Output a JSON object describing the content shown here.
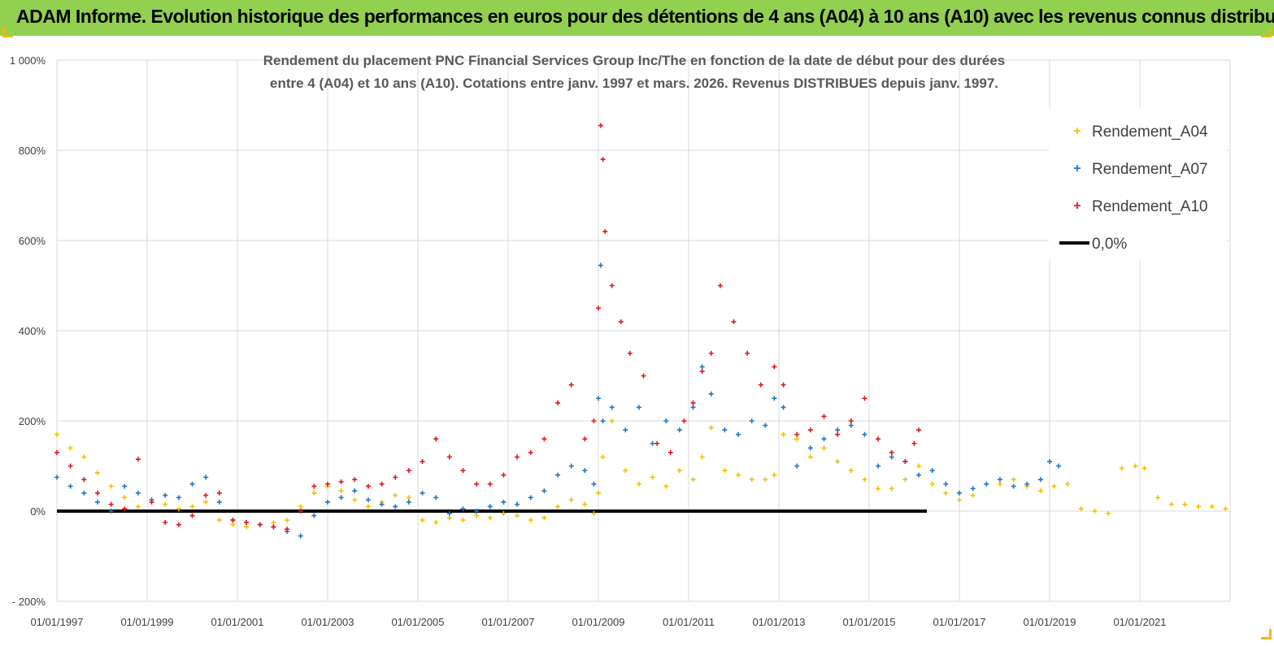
{
  "banner": {
    "title": "ADAM Informe. Evolution historique des performances en euros pour des détentions de 4 ans (A04) à 10 ans (A10) avec les revenus connus distribués",
    "background": "#92d050"
  },
  "chart_data": {
    "type": "scatter",
    "title_lines": [
      "Rendement du placement PNC Financial Services Group Inc/The en fonction de la date de début pour des durées",
      "entre 4 (A04) et 10 ans (A10).  Cotations entre janv. 1997 et mars. 2026. Revenus DISTRIBUES depuis janv. 1997."
    ],
    "xlabel": "",
    "ylabel": "",
    "ylim": [
      -200,
      1000
    ],
    "yticks": [
      -200,
      0,
      200,
      400,
      600,
      800,
      1000
    ],
    "ytick_labels": [
      "- 200%",
      "0%",
      "200%",
      "400%",
      "600%",
      "800%",
      "1 000%"
    ],
    "xlim": [
      1997.0,
      2023.0
    ],
    "xticks": [
      1997,
      1999,
      2001,
      2003,
      2005,
      2007,
      2009,
      2011,
      2013,
      2015,
      2017,
      2019,
      2021
    ],
    "xtick_labels": [
      "01/01/1997",
      "01/01/1999",
      "01/01/2001",
      "01/01/2003",
      "01/01/2005",
      "01/01/2007",
      "01/01/2009",
      "01/01/2011",
      "01/01/2013",
      "01/01/2015",
      "01/01/2017",
      "01/01/2019",
      "01/01/2021"
    ],
    "grid": true,
    "legend_position": "top-right",
    "reference_line": {
      "name": "0,0%",
      "y": 0,
      "color": "#000000"
    },
    "series": [
      {
        "name": "Rendement_A04",
        "color": "#f5c000",
        "x": [
          1997.0,
          1997.3,
          1997.6,
          1997.9,
          1998.2,
          1998.5,
          1998.8,
          1999.1,
          1999.4,
          1999.7,
          2000.0,
          2000.3,
          2000.6,
          2000.9,
          2001.2,
          2001.5,
          2001.8,
          2002.1,
          2002.4,
          2002.7,
          2003.0,
          2003.3,
          2003.6,
          2003.9,
          2004.2,
          2004.5,
          2004.8,
          2005.1,
          2005.4,
          2005.7,
          2006.0,
          2006.3,
          2006.6,
          2006.9,
          2007.2,
          2007.5,
          2007.8,
          2008.1,
          2008.4,
          2008.7,
          2008.9,
          2009.0,
          2009.1,
          2009.3,
          2009.6,
          2009.9,
          2010.2,
          2010.5,
          2010.8,
          2011.1,
          2011.3,
          2011.5,
          2011.8,
          2012.1,
          2012.4,
          2012.7,
          2012.9,
          2013.1,
          2013.4,
          2013.7,
          2014.0,
          2014.3,
          2014.6,
          2014.9,
          2015.2,
          2015.5,
          2015.8,
          2016.1,
          2016.4,
          2016.7,
          2017.0,
          2017.3,
          2017.6,
          2017.9,
          2018.2,
          2018.5,
          2018.8,
          2019.1,
          2019.4,
          2019.7,
          2020.0,
          2020.3,
          2020.6,
          2020.9,
          2021.1,
          2021.4,
          2021.7,
          2022.0,
          2022.3,
          2022.6,
          2022.9
        ],
        "y": [
          170,
          140,
          120,
          85,
          55,
          30,
          10,
          25,
          15,
          5,
          10,
          20,
          -20,
          -30,
          -35,
          -30,
          -25,
          -20,
          10,
          40,
          55,
          45,
          25,
          10,
          20,
          35,
          30,
          -20,
          -25,
          -15,
          -20,
          -10,
          -15,
          -5,
          -10,
          -20,
          -15,
          10,
          25,
          15,
          -5,
          40,
          120,
          200,
          90,
          60,
          75,
          55,
          90,
          70,
          120,
          185,
          90,
          80,
          70,
          70,
          80,
          170,
          160,
          120,
          140,
          110,
          90,
          70,
          50,
          50,
          70,
          100,
          60,
          40,
          25,
          35,
          60,
          60,
          70,
          55,
          45,
          55,
          60,
          5,
          0,
          -5,
          95,
          100,
          95,
          30,
          15,
          15,
          10,
          10,
          5
        ]
      },
      {
        "name": "Rendement_A07",
        "color": "#1f77c2",
        "x": [
          1997.0,
          1997.3,
          1997.6,
          1997.9,
          1998.2,
          1998.5,
          1998.8,
          1999.1,
          1999.4,
          1999.7,
          2000.0,
          2000.3,
          2000.6,
          2000.9,
          2001.2,
          2001.5,
          2001.8,
          2002.1,
          2002.4,
          2002.7,
          2003.0,
          2003.3,
          2003.6,
          2003.9,
          2004.2,
          2004.5,
          2004.8,
          2005.1,
          2005.4,
          2005.7,
          2006.0,
          2006.3,
          2006.6,
          2006.9,
          2007.2,
          2007.5,
          2007.8,
          2008.1,
          2008.4,
          2008.7,
          2008.9,
          2009.0,
          2009.05,
          2009.1,
          2009.3,
          2009.6,
          2009.9,
          2010.2,
          2010.5,
          2010.8,
          2011.1,
          2011.3,
          2011.5,
          2011.8,
          2012.1,
          2012.4,
          2012.7,
          2012.9,
          2013.1,
          2013.4,
          2013.7,
          2014.0,
          2014.3,
          2014.6,
          2014.9,
          2015.2,
          2015.5,
          2015.8,
          2016.1,
          2016.4,
          2016.7,
          2017.0,
          2017.3,
          2017.6,
          2017.9,
          2018.2,
          2018.5,
          2018.8,
          2019.0,
          2019.2
        ],
        "y": [
          75,
          55,
          40,
          20,
          0,
          55,
          40,
          25,
          35,
          30,
          60,
          75,
          20,
          -20,
          -25,
          -30,
          -35,
          -45,
          -55,
          -10,
          20,
          30,
          45,
          25,
          15,
          10,
          20,
          40,
          30,
          -5,
          5,
          0,
          10,
          20,
          15,
          30,
          45,
          80,
          100,
          90,
          60,
          250,
          545,
          200,
          230,
          180,
          230,
          150,
          200,
          180,
          230,
          320,
          260,
          180,
          170,
          200,
          190,
          250,
          230,
          100,
          140,
          160,
          180,
          190,
          170,
          100,
          120,
          110,
          80,
          90,
          60,
          40,
          50,
          60,
          70,
          55,
          60,
          70,
          110,
          100
        ]
      },
      {
        "name": "Rendement_A10",
        "color": "#e8141a",
        "x": [
          1997.0,
          1997.3,
          1997.6,
          1997.9,
          1998.2,
          1998.5,
          1998.8,
          1999.1,
          1999.4,
          1999.7,
          2000.0,
          2000.3,
          2000.6,
          2000.9,
          2001.2,
          2001.5,
          2001.8,
          2002.1,
          2002.4,
          2002.7,
          2003.0,
          2003.3,
          2003.6,
          2003.9,
          2004.2,
          2004.5,
          2004.8,
          2005.1,
          2005.4,
          2005.7,
          2006.0,
          2006.3,
          2006.6,
          2006.9,
          2007.2,
          2007.5,
          2007.8,
          2008.1,
          2008.4,
          2008.7,
          2008.9,
          2009.0,
          2009.05,
          2009.1,
          2009.15,
          2009.3,
          2009.5,
          2009.7,
          2010.0,
          2010.3,
          2010.6,
          2010.9,
          2011.1,
          2011.3,
          2011.5,
          2011.7,
          2012.0,
          2012.3,
          2012.6,
          2012.9,
          2013.1,
          2013.4,
          2013.7,
          2014.0,
          2014.3,
          2014.6,
          2014.9,
          2015.2,
          2015.5,
          2015.8,
          2016.0,
          2016.1
        ],
        "y": [
          130,
          100,
          70,
          40,
          15,
          5,
          115,
          20,
          -25,
          -30,
          -10,
          35,
          40,
          -20,
          -25,
          -30,
          -35,
          -40,
          0,
          55,
          60,
          65,
          70,
          55,
          60,
          75,
          90,
          110,
          160,
          120,
          90,
          60,
          60,
          80,
          120,
          130,
          160,
          240,
          280,
          160,
          200,
          450,
          855,
          780,
          620,
          500,
          420,
          350,
          300,
          150,
          130,
          200,
          240,
          310,
          350,
          500,
          420,
          350,
          280,
          320,
          280,
          170,
          180,
          210,
          170,
          200,
          250,
          160,
          130,
          110,
          150,
          180
        ]
      }
    ]
  }
}
